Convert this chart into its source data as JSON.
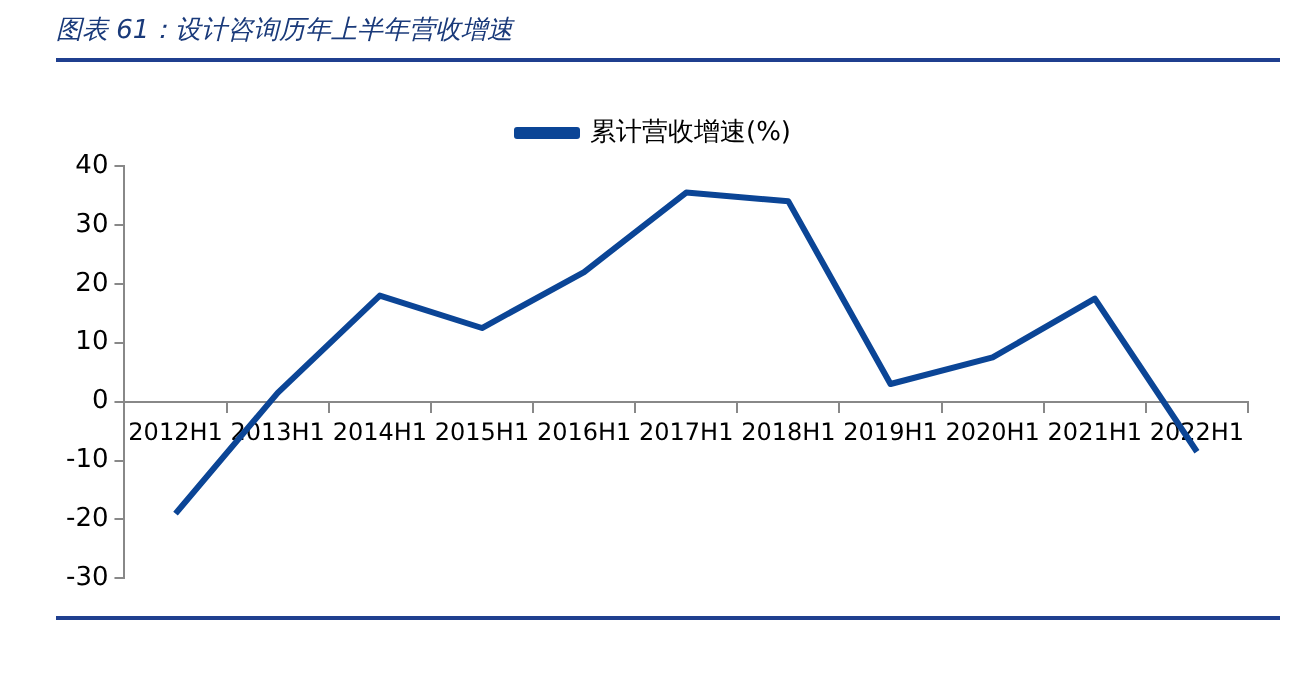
{
  "chart_data": {
    "type": "line",
    "title": "图表 61：设计咨询历年上半年营收增速",
    "categories": [
      "2012H1",
      "2013H1",
      "2014H1",
      "2015H1",
      "2016H1",
      "2017H1",
      "2018H1",
      "2019H1",
      "2020H1",
      "2021H1",
      "2022H1"
    ],
    "series": [
      {
        "name": "累计营收增速(%)",
        "color": "#0b4596",
        "values": [
          -19,
          1.5,
          18,
          12.5,
          22,
          35.5,
          34,
          3,
          7.5,
          17.5,
          -8.5
        ]
      }
    ],
    "ylim": [
      -30,
      40
    ],
    "yticks": [
      -30,
      -20,
      -10,
      0,
      10,
      20,
      30,
      40
    ],
    "grid": false,
    "legend": "top",
    "marker": "none",
    "line_style": "solid"
  }
}
